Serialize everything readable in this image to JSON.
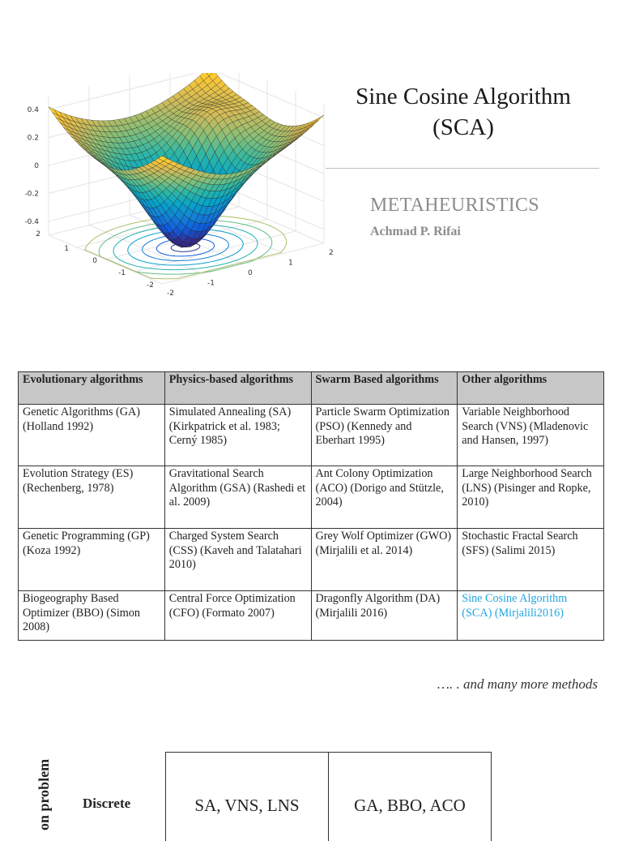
{
  "header": {
    "title_line1": "Sine Cosine Algorithm",
    "title_line2": "(SCA)",
    "subtitle": "METAHEURISTICS",
    "author": "Achmad P. Rifai"
  },
  "surface_plot": {
    "z_ticks": [
      "0.4",
      "0.2",
      "0",
      "-0.2",
      "-0.4"
    ],
    "x_ticks": [
      "2",
      "1",
      "0",
      "-1",
      "-2"
    ],
    "y_ticks": [
      "-2",
      "-1",
      "0",
      "1",
      "2"
    ],
    "colormap": [
      "#352a87",
      "#0f5cdd",
      "#1481d6",
      "#06a4ca",
      "#2eb7a4",
      "#87bf77",
      "#d1bb59",
      "#fec832",
      "#f9fb0e"
    ]
  },
  "algorithms_table": {
    "headers": [
      "Evolutionary algorithms",
      "Physics-based algorithms",
      "Swarm Based algorithms",
      "Other algorithms"
    ],
    "rows": [
      [
        "Genetic Algorithms (GA) (Holland 1992)",
        "Simulated Annealing (SA) (Kirkpatrick et al. 1983; Cerný 1985)",
        "Particle Swarm Optimization (PSO) (Kennedy and Eberhart 1995)",
        "Variable Neighborhood Search (VNS) (Mladenovic and Hansen, 1997)"
      ],
      [
        "Evolution Strategy (ES) (Rechenberg, 1978)",
        "Gravitational Search Algorithm (GSA) (Rashedi et al. 2009)",
        "Ant Colony Optimization (ACO) (Dorigo and Stützle, 2004)",
        "Large Neighborhood Search (LNS) (Pisinger and Ropke, 2010)"
      ],
      [
        "Genetic Programming (GP) (Koza 1992)",
        "Charged System Search (CSS) (Kaveh and Talatahari 2010)",
        "Grey Wolf Optimizer (GWO) (Mirjalili et al. 2014)",
        "Stochastic Fractal Search (SFS) (Salimi 2015)"
      ],
      [
        "Biogeography Based Optimizer (BBO) (Simon 2008)",
        "Central Force Optimization (CFO) (Formato 2007)",
        "Dragonfly Algorithm (DA) (Mirjalili 2016)",
        "Sine Cosine Algorithm (SCA) (Mirjalili2016)"
      ]
    ],
    "highlight_color": "#21a6e0"
  },
  "more_methods": "…. . and many more methods",
  "classification": {
    "axis_label": "on problem",
    "row_label": "Discrete",
    "cells": [
      "SA, VNS, LNS",
      "GA, BBO, ACO"
    ]
  }
}
